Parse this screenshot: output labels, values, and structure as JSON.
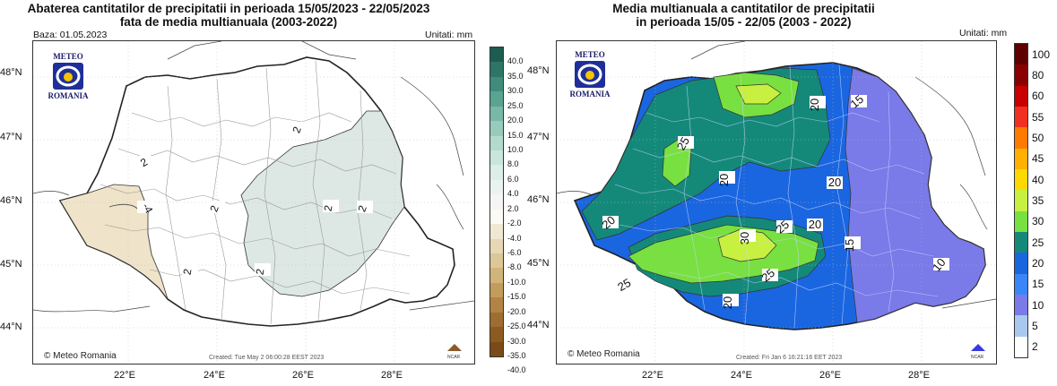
{
  "left_map": {
    "title_line1": "Abaterea cantitatilor de precipitatii in perioada 15/05/2023 - 22/05/2023",
    "title_line2": "fata de media multianuala (2003-2022)",
    "base_label": "Baza: 01.05.2023",
    "units_label": "Unitati: mm",
    "lat_labels": [
      "48°N",
      "47°N",
      "46°N",
      "45°N",
      "44°N"
    ],
    "lon_labels": [
      "22°E",
      "24°E",
      "26°E",
      "28°E"
    ],
    "colorbar_labels": [
      "40.0",
      "35.0",
      "30.0",
      "25.0",
      "20.0",
      "15.0",
      "10.0",
      "8.0",
      "6.0",
      "4.0",
      "2.0",
      "-2.0",
      "-4.0",
      "-6.0",
      "-8.0",
      "-10.0",
      "-15.0",
      "-20.0",
      "-25.0",
      "-30.0",
      "-35.0",
      "-40.0"
    ],
    "colorbar_colors": [
      "#1d5d50",
      "#2e7566",
      "#3f8c7b",
      "#5aa391",
      "#79b8a6",
      "#98cbbb",
      "#b3dbcd",
      "#c8e6dc",
      "#dbeee8",
      "#e9f4f0",
      "#f5f5f5",
      "#fbfaf5",
      "#f0e8d3",
      "#e6d8b4",
      "#dcc897",
      "#d0b47a",
      "#c29c5c",
      "#b28444",
      "#a06d30",
      "#8d5a22",
      "#7a4a18"
    ],
    "contour_labels": [
      "2",
      "-4",
      "2",
      "2",
      "2",
      "2",
      "2",
      "2"
    ],
    "logo_top": "METEO",
    "logo_bottom": "ROMANIA",
    "copyright": "© Meteo Romania",
    "created": "Created: Tue May  2 06:00:28 EEST 2023",
    "ncar": "NCAR"
  },
  "right_map": {
    "title_line1": "Media multianuala a cantitatilor de precipitatii",
    "title_line2": "in perioada 15/05 - 22/05 (2003 - 2022)",
    "units_label": "Unitati: mm",
    "lat_labels": [
      "48°N",
      "47°N",
      "46°N",
      "45°N",
      "44°N"
    ],
    "lon_labels": [
      "22°E",
      "24°E",
      "26°E",
      "28°E"
    ],
    "colorbar_labels": [
      "100",
      "80",
      "60",
      "55",
      "50",
      "45",
      "40",
      "35",
      "30",
      "25",
      "20",
      "15",
      "10",
      "5",
      "2"
    ],
    "colorbar_colors": [
      "#5e0000",
      "#8a0000",
      "#c80000",
      "#f03020",
      "#ff7a00",
      "#ffb000",
      "#ffd800",
      "#c8f040",
      "#78e040",
      "#14897a",
      "#1a66e0",
      "#3a86f8",
      "#7a7ae8",
      "#a8c8f0",
      "#ffffff"
    ],
    "contour_labels": [
      "20",
      "15",
      "25",
      "20",
      "20",
      "20",
      "25",
      "30",
      "20",
      "15",
      "25",
      "20",
      "10",
      "25"
    ],
    "logo_top": "METEO",
    "logo_bottom": "ROMANIA",
    "copyright": "© Meteo Romania",
    "created": "Created: Fri Jan  6 16:21:16 EET 2023",
    "ncar": "NCAR"
  }
}
